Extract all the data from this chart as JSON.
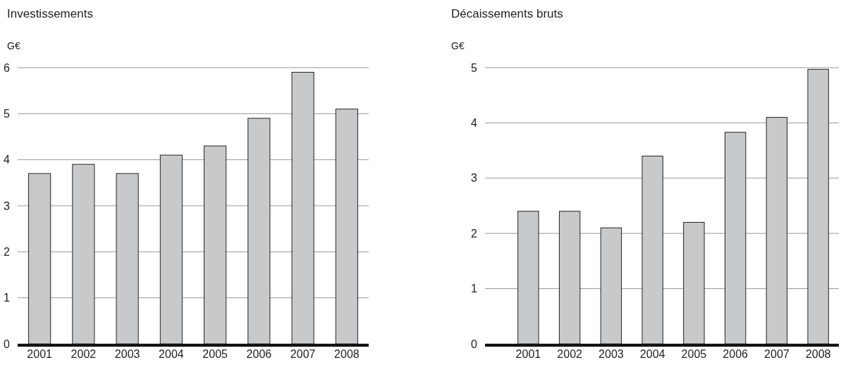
{
  "chart_data": [
    {
      "type": "bar",
      "title": "Investissements",
      "ylabel": "G€",
      "categories": [
        "2001",
        "2002",
        "2003",
        "2004",
        "2005",
        "2006",
        "2007",
        "2008"
      ],
      "values": [
        3.7,
        3.9,
        3.7,
        4.1,
        4.3,
        4.9,
        5.9,
        5.1
      ],
      "color": "#c8c9cb",
      "ylim": [
        0,
        6
      ],
      "yticks": [
        0,
        1,
        2,
        3,
        4,
        5,
        6
      ],
      "grid": "y"
    },
    {
      "type": "bar",
      "title": "Décaissements bruts",
      "ylabel": "G€",
      "categories": [
        "2001",
        "2002",
        "2003",
        "2004",
        "2005",
        "2006",
        "2007",
        "2008"
      ],
      "values": [
        2.4,
        2.4,
        2.1,
        3.4,
        2.2,
        3.83,
        4.1,
        4.97
      ],
      "color": "#c8c9cb",
      "ylim": [
        0,
        5
      ],
      "yticks": [
        0,
        1,
        2,
        3,
        4,
        5
      ],
      "grid": "y"
    }
  ]
}
